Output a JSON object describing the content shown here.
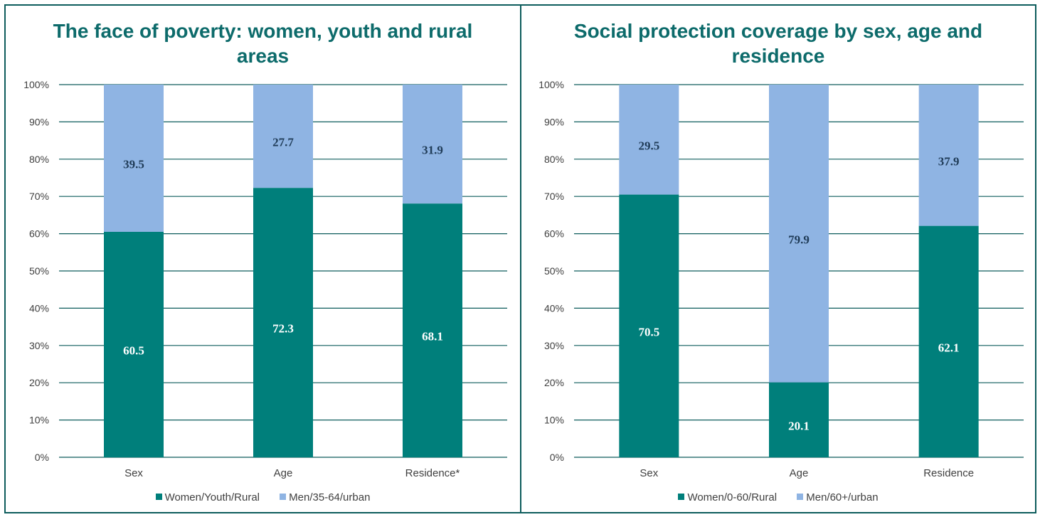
{
  "colors": {
    "primary": "#007f7b",
    "secondary": "#8fb4e3",
    "axis": "#0d5c5c",
    "title": "#0d6b6b"
  },
  "chart_data": [
    {
      "type": "bar",
      "stacked": true,
      "title": "The face of poverty: women, youth and rural areas",
      "categories": [
        "Sex",
        "Age",
        "Residence*"
      ],
      "series": [
        {
          "name": "Women/Youth/Rural",
          "values": [
            60.5,
            72.3,
            68.1
          ],
          "color": "#007f7b"
        },
        {
          "name": "Men/35-64/urban",
          "values": [
            39.5,
            27.7,
            31.9
          ],
          "color": "#8fb4e3"
        }
      ],
      "yticks": [
        "0%",
        "10%",
        "20%",
        "30%",
        "40%",
        "50%",
        "60%",
        "70%",
        "80%",
        "90%",
        "100%"
      ],
      "ylim": [
        0,
        100
      ],
      "grid": true,
      "legend": "bottom"
    },
    {
      "type": "bar",
      "stacked": true,
      "title": "Social protection coverage by sex, age and residence",
      "categories": [
        "Sex",
        "Age",
        "Residence"
      ],
      "series": [
        {
          "name": "Women/0-60/Rural",
          "values": [
            70.5,
            20.1,
            62.1
          ],
          "color": "#007f7b"
        },
        {
          "name": "Men/60+/urban",
          "values": [
            29.5,
            79.9,
            37.9
          ],
          "color": "#8fb4e3"
        }
      ],
      "yticks": [
        "0%",
        "10%",
        "20%",
        "30%",
        "40%",
        "50%",
        "60%",
        "70%",
        "80%",
        "90%",
        "100%"
      ],
      "ylim": [
        0,
        100
      ],
      "grid": true,
      "legend": "bottom"
    }
  ]
}
